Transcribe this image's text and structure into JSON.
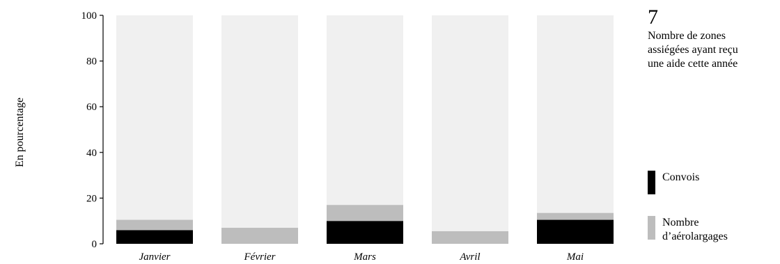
{
  "chart_data": {
    "type": "bar",
    "stacked": true,
    "ylabel": "En pourcentage",
    "ylim": [
      0,
      100
    ],
    "yticks": [
      0,
      20,
      40,
      60,
      80,
      100
    ],
    "categories": [
      "Janvier",
      "Février",
      "Mars",
      "Avril",
      "Mai"
    ],
    "series": [
      {
        "name": "Convois",
        "color": "#000000",
        "values": [
          6,
          0,
          10,
          0,
          10.5
        ]
      },
      {
        "name": "Nombre d'aérolargages",
        "color": "#bdbdbd",
        "values": [
          4.5,
          7,
          7,
          5.5,
          3
        ]
      }
    ],
    "background_color": "#f0f0f0",
    "legend_position": "right"
  },
  "stat": {
    "number": "7",
    "text": "Nombre de zones\nassiégées ayant reçu\nune aide cette année"
  },
  "legend": {
    "items": [
      {
        "label": "Convois",
        "color": "#000000"
      },
      {
        "label": "Nombre\nd’aérolargages",
        "color": "#bdbdbd"
      }
    ]
  }
}
